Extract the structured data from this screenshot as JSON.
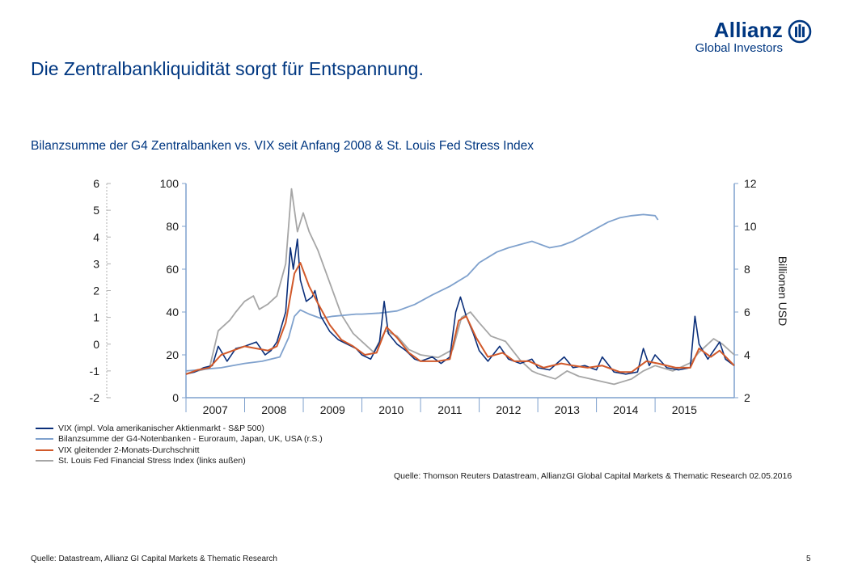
{
  "logo": {
    "brand": "Allianz",
    "division": "Global Investors",
    "icon": "allianz-eagle-icon"
  },
  "header": {
    "title": "Die Zentralbankliquidität sorgt für Entspannung."
  },
  "chart_data": {
    "type": "line",
    "subtitle": "Bilanzsumme der G4 Zentralbanken vs. VIX seit Anfang 2008 & St. Louis Fed Stress Index",
    "left_outer_axis": {
      "ticks": [
        "6",
        "5",
        "4",
        "3",
        "2",
        "1",
        "0",
        "-1",
        "-2"
      ],
      "ylim": [
        -2,
        6
      ]
    },
    "left_axis": {
      "ticks": [
        "100",
        "80",
        "60",
        "40",
        "20",
        "0"
      ],
      "ylim": [
        0,
        100
      ]
    },
    "right_axis": {
      "label": "Billionen USD",
      "ticks": [
        "12",
        "10",
        "8",
        "6",
        "4",
        "2"
      ],
      "ylim": [
        2,
        12
      ]
    },
    "x_axis": {
      "ticks": [
        "2007",
        "2008",
        "2009",
        "2010",
        "2011",
        "2012",
        "2013",
        "2014",
        "2015"
      ],
      "range": [
        2007.0,
        2016.35
      ]
    },
    "series": [
      {
        "name": "VIX (impl. Vola amerikanischer Aktienmarkt - S&P 500)",
        "axis": "left",
        "color": "#0b2f7a",
        "points": [
          [
            2007.0,
            11
          ],
          [
            2007.15,
            12
          ],
          [
            2007.3,
            14
          ],
          [
            2007.45,
            15
          ],
          [
            2007.55,
            24
          ],
          [
            2007.7,
            17
          ],
          [
            2007.85,
            23
          ],
          [
            2008.0,
            24
          ],
          [
            2008.2,
            26
          ],
          [
            2008.35,
            20
          ],
          [
            2008.45,
            22
          ],
          [
            2008.55,
            26
          ],
          [
            2008.7,
            40
          ],
          [
            2008.78,
            70
          ],
          [
            2008.83,
            60
          ],
          [
            2008.9,
            74
          ],
          [
            2008.95,
            55
          ],
          [
            2009.05,
            45
          ],
          [
            2009.15,
            47
          ],
          [
            2009.2,
            50
          ],
          [
            2009.3,
            38
          ],
          [
            2009.45,
            31
          ],
          [
            2009.6,
            27
          ],
          [
            2009.75,
            25
          ],
          [
            2009.9,
            23
          ],
          [
            2010.0,
            20
          ],
          [
            2010.15,
            18
          ],
          [
            2010.3,
            26
          ],
          [
            2010.38,
            45
          ],
          [
            2010.45,
            30
          ],
          [
            2010.6,
            25
          ],
          [
            2010.75,
            22
          ],
          [
            2010.9,
            18
          ],
          [
            2011.0,
            17
          ],
          [
            2011.2,
            19
          ],
          [
            2011.35,
            16
          ],
          [
            2011.5,
            19
          ],
          [
            2011.6,
            40
          ],
          [
            2011.68,
            47
          ],
          [
            2011.78,
            38
          ],
          [
            2011.9,
            30
          ],
          [
            2012.0,
            22
          ],
          [
            2012.15,
            17
          ],
          [
            2012.35,
            24
          ],
          [
            2012.5,
            18
          ],
          [
            2012.7,
            16
          ],
          [
            2012.9,
            18
          ],
          [
            2013.0,
            14
          ],
          [
            2013.2,
            13
          ],
          [
            2013.45,
            19
          ],
          [
            2013.6,
            14
          ],
          [
            2013.8,
            15
          ],
          [
            2014.0,
            13
          ],
          [
            2014.1,
            19
          ],
          [
            2014.3,
            12
          ],
          [
            2014.5,
            11
          ],
          [
            2014.7,
            12
          ],
          [
            2014.8,
            23
          ],
          [
            2014.9,
            15
          ],
          [
            2015.0,
            20
          ],
          [
            2015.2,
            14
          ],
          [
            2015.4,
            13
          ],
          [
            2015.6,
            14
          ],
          [
            2015.68,
            38
          ],
          [
            2015.75,
            25
          ],
          [
            2015.9,
            18
          ],
          [
            2016.0,
            22
          ],
          [
            2016.1,
            26
          ],
          [
            2016.2,
            18
          ],
          [
            2016.35,
            15
          ]
        ]
      },
      {
        "name": "Bilanzsumme der G4-Notenbanken - Euroraum, Japan, UK, USA (r.S.)",
        "axis": "right",
        "color": "#7fa1cd",
        "points": [
          [
            2007.0,
            3.25
          ],
          [
            2007.2,
            3.3
          ],
          [
            2007.4,
            3.35
          ],
          [
            2007.6,
            3.4
          ],
          [
            2007.8,
            3.5
          ],
          [
            2008.0,
            3.6
          ],
          [
            2008.3,
            3.7
          ],
          [
            2008.6,
            3.9
          ],
          [
            2008.75,
            4.8
          ],
          [
            2008.85,
            5.8
          ],
          [
            2008.95,
            6.1
          ],
          [
            2009.1,
            5.9
          ],
          [
            2009.3,
            5.7
          ],
          [
            2009.5,
            5.8
          ],
          [
            2009.7,
            5.85
          ],
          [
            2009.9,
            5.9
          ],
          [
            2010.0,
            5.9
          ],
          [
            2010.3,
            5.95
          ],
          [
            2010.6,
            6.05
          ],
          [
            2010.9,
            6.35
          ],
          [
            2011.2,
            6.8
          ],
          [
            2011.5,
            7.2
          ],
          [
            2011.8,
            7.7
          ],
          [
            2012.0,
            8.3
          ],
          [
            2012.3,
            8.8
          ],
          [
            2012.5,
            9.0
          ],
          [
            2012.7,
            9.15
          ],
          [
            2012.9,
            9.3
          ],
          [
            2013.0,
            9.2
          ],
          [
            2013.2,
            9.0
          ],
          [
            2013.4,
            9.1
          ],
          [
            2013.6,
            9.3
          ],
          [
            2013.8,
            9.6
          ],
          [
            2014.0,
            9.9
          ],
          [
            2014.2,
            10.2
          ],
          [
            2014.4,
            10.4
          ],
          [
            2014.6,
            10.5
          ],
          [
            2014.8,
            10.55
          ],
          [
            2015.0,
            10.5
          ],
          [
            2015.05,
            10.3
          ]
        ]
      },
      {
        "name": "VIX gleitender 2-Monats-Durchschnitt",
        "axis": "left",
        "color": "#d1592a",
        "points": [
          [
            2007.0,
            11
          ],
          [
            2007.2,
            13
          ],
          [
            2007.4,
            14
          ],
          [
            2007.6,
            20
          ],
          [
            2007.8,
            22
          ],
          [
            2008.0,
            24
          ],
          [
            2008.2,
            23
          ],
          [
            2008.4,
            22
          ],
          [
            2008.55,
            24
          ],
          [
            2008.7,
            35
          ],
          [
            2008.85,
            58
          ],
          [
            2008.95,
            63
          ],
          [
            2009.1,
            52
          ],
          [
            2009.25,
            44
          ],
          [
            2009.45,
            34
          ],
          [
            2009.65,
            27
          ],
          [
            2009.85,
            24
          ],
          [
            2010.05,
            20
          ],
          [
            2010.25,
            21
          ],
          [
            2010.42,
            33
          ],
          [
            2010.6,
            28
          ],
          [
            2010.8,
            21
          ],
          [
            2011.0,
            17
          ],
          [
            2011.3,
            17
          ],
          [
            2011.5,
            18
          ],
          [
            2011.65,
            36
          ],
          [
            2011.78,
            38
          ],
          [
            2011.95,
            28
          ],
          [
            2012.15,
            19
          ],
          [
            2012.4,
            21
          ],
          [
            2012.6,
            17
          ],
          [
            2012.85,
            17
          ],
          [
            2013.1,
            14
          ],
          [
            2013.4,
            16
          ],
          [
            2013.6,
            15
          ],
          [
            2013.85,
            14
          ],
          [
            2014.1,
            15
          ],
          [
            2014.4,
            12
          ],
          [
            2014.6,
            12
          ],
          [
            2014.85,
            17
          ],
          [
            2015.05,
            16
          ],
          [
            2015.35,
            14
          ],
          [
            2015.6,
            14
          ],
          [
            2015.75,
            23
          ],
          [
            2015.95,
            19
          ],
          [
            2016.1,
            22
          ],
          [
            2016.35,
            15
          ]
        ]
      },
      {
        "name": "St. Louis Fed Financial Stress Index (links außen)",
        "axis": "outer",
        "color": "#a6a6a6",
        "points": [
          [
            2007.0,
            -1.1
          ],
          [
            2007.2,
            -1.0
          ],
          [
            2007.4,
            -0.9
          ],
          [
            2007.55,
            0.5
          ],
          [
            2007.75,
            0.9
          ],
          [
            2007.85,
            1.2
          ],
          [
            2008.0,
            1.6
          ],
          [
            2008.15,
            1.8
          ],
          [
            2008.25,
            1.3
          ],
          [
            2008.4,
            1.5
          ],
          [
            2008.55,
            1.8
          ],
          [
            2008.7,
            3.0
          ],
          [
            2008.8,
            5.8
          ],
          [
            2008.9,
            4.2
          ],
          [
            2009.0,
            4.9
          ],
          [
            2009.1,
            4.2
          ],
          [
            2009.25,
            3.5
          ],
          [
            2009.45,
            2.3
          ],
          [
            2009.65,
            1.1
          ],
          [
            2009.85,
            0.4
          ],
          [
            2010.0,
            0.1
          ],
          [
            2010.2,
            -0.3
          ],
          [
            2010.4,
            0.5
          ],
          [
            2010.6,
            0.3
          ],
          [
            2010.8,
            -0.2
          ],
          [
            2011.0,
            -0.4
          ],
          [
            2011.3,
            -0.5
          ],
          [
            2011.55,
            -0.2
          ],
          [
            2011.7,
            1.0
          ],
          [
            2011.85,
            1.2
          ],
          [
            2012.0,
            0.8
          ],
          [
            2012.2,
            0.3
          ],
          [
            2012.45,
            0.1
          ],
          [
            2012.7,
            -0.6
          ],
          [
            2012.9,
            -1.0
          ],
          [
            2013.0,
            -1.1
          ],
          [
            2013.3,
            -1.3
          ],
          [
            2013.5,
            -1.0
          ],
          [
            2013.7,
            -1.2
          ],
          [
            2013.9,
            -1.3
          ],
          [
            2014.1,
            -1.4
          ],
          [
            2014.3,
            -1.5
          ],
          [
            2014.6,
            -1.3
          ],
          [
            2014.8,
            -1.0
          ],
          [
            2015.0,
            -0.8
          ],
          [
            2015.3,
            -1.0
          ],
          [
            2015.6,
            -0.7
          ],
          [
            2015.75,
            -0.3
          ],
          [
            2016.0,
            0.2
          ],
          [
            2016.15,
            0.0
          ],
          [
            2016.35,
            -0.4
          ]
        ]
      }
    ],
    "source": "Quelle: Thomson Reuters Datastream, AllianzGI Global Capital Markets & Thematic Research 02.05.2016"
  },
  "footer": {
    "source": "Quelle: Datastream, Allianz GI Capital Markets & Thematic Research",
    "page": "5"
  }
}
